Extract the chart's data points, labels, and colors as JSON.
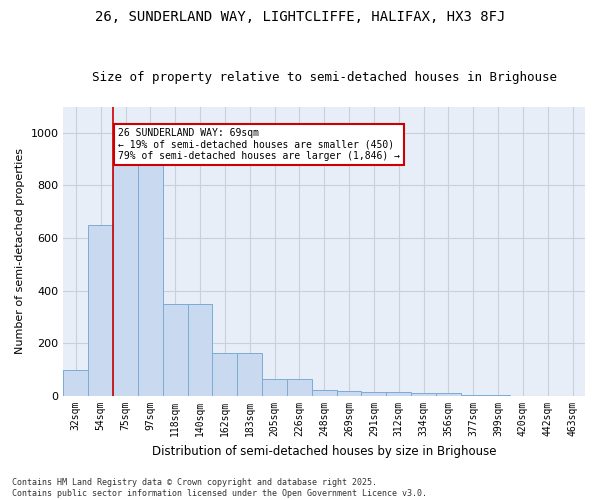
{
  "title": "26, SUNDERLAND WAY, LIGHTCLIFFE, HALIFAX, HX3 8FJ",
  "subtitle": "Size of property relative to semi-detached houses in Brighouse",
  "xlabel": "Distribution of semi-detached houses by size in Brighouse",
  "ylabel": "Number of semi-detached properties",
  "bar_color": "#c9d9ef",
  "bar_edge_color": "#7bacd4",
  "grid_color": "#c8d0dc",
  "bg_color": "#e8eef8",
  "categories": [
    "32sqm",
    "54sqm",
    "75sqm",
    "97sqm",
    "118sqm",
    "140sqm",
    "162sqm",
    "183sqm",
    "205sqm",
    "226sqm",
    "248sqm",
    "269sqm",
    "291sqm",
    "312sqm",
    "334sqm",
    "356sqm",
    "377sqm",
    "399sqm",
    "420sqm",
    "442sqm",
    "463sqm"
  ],
  "values": [
    100,
    650,
    930,
    930,
    350,
    350,
    165,
    165,
    65,
    65,
    22,
    18,
    15,
    15,
    12,
    12,
    4,
    4,
    2,
    2,
    1
  ],
  "vline_x": 1.5,
  "vline_color": "#cc0000",
  "annotation_text": "26 SUNDERLAND WAY: 69sqm\n← 19% of semi-detached houses are smaller (450)\n79% of semi-detached houses are larger (1,846) →",
  "annotation_box_color": "#ffffff",
  "annotation_box_edge": "#cc0000",
  "footer": "Contains HM Land Registry data © Crown copyright and database right 2025.\nContains public sector information licensed under the Open Government Licence v3.0.",
  "ylim": [
    0,
    1100
  ],
  "yticks": [
    0,
    200,
    400,
    600,
    800,
    1000
  ],
  "title_fontsize": 10,
  "subtitle_fontsize": 9
}
